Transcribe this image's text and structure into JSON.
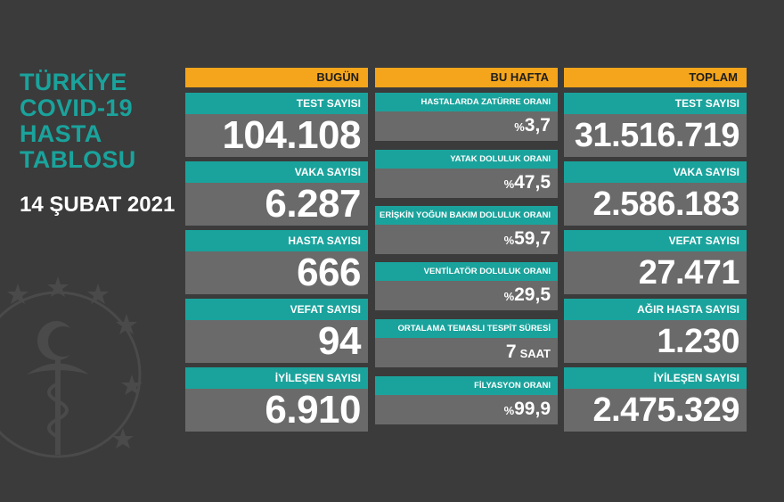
{
  "side": {
    "title_lines": [
      "TÜRKİYE",
      "COVID-19",
      "HASTA",
      "TABLOSU"
    ],
    "date": "14 ŞUBAT 2021"
  },
  "today": {
    "header": "BUGÜN",
    "items": [
      {
        "label": "TEST SAYISI",
        "value": "104.108"
      },
      {
        "label": "VAKA SAYISI",
        "value": "6.287"
      },
      {
        "label": "HASTA SAYISI",
        "value": "666"
      },
      {
        "label": "VEFAT SAYISI",
        "value": "94"
      },
      {
        "label": "İYİLEŞEN SAYISI",
        "value": "6.910"
      }
    ]
  },
  "week": {
    "header": "BU HAFTA",
    "items": [
      {
        "label": "HASTALARDA ZATÜRRE ORANI",
        "prefix": "%",
        "value": "3,7",
        "unit": ""
      },
      {
        "label": "YATAK DOLULUK ORANI",
        "prefix": "%",
        "value": "47,5",
        "unit": ""
      },
      {
        "label": "ERİŞKİN YOĞUN BAKIM DOLULUK ORANI",
        "prefix": "%",
        "value": "59,7",
        "unit": ""
      },
      {
        "label": "VENTİLATÖR DOLULUK ORANI",
        "prefix": "%",
        "value": "29,5",
        "unit": ""
      },
      {
        "label": "ORTALAMA TEMASLI TESPİT SÜRESİ",
        "prefix": "",
        "value": "7",
        "unit": "SAAT"
      },
      {
        "label": "FİLYASYON ORANI",
        "prefix": "%",
        "value": "99,9",
        "unit": ""
      }
    ]
  },
  "total": {
    "header": "TOPLAM",
    "items": [
      {
        "label": "TEST SAYISI",
        "value": "31.516.719"
      },
      {
        "label": "VAKA SAYISI",
        "value": "2.586.183"
      },
      {
        "label": "VEFAT SAYISI",
        "value": "27.471"
      },
      {
        "label": "AĞIR HASTA SAYISI",
        "value": "1.230"
      },
      {
        "label": "İYİLEŞEN SAYISI",
        "value": "2.475.329"
      }
    ]
  },
  "colors": {
    "background": "#3b3b3b",
    "header": "#f5a51c",
    "label": "#1aa39c",
    "card": "#6a6a6a"
  }
}
